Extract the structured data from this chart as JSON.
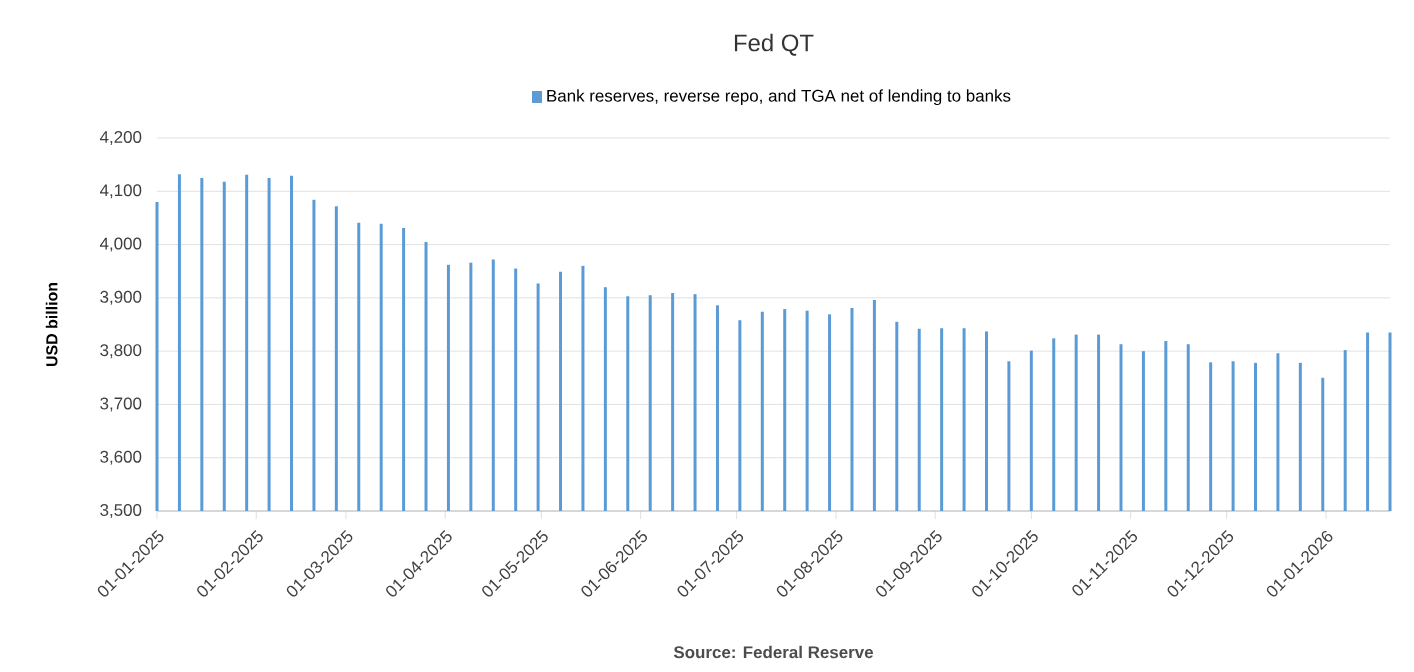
{
  "chart_data": {
    "type": "bar",
    "title": "Fed QT",
    "ylabel": "USD billion",
    "annotations": [
      "Source: Federal Reserve"
    ],
    "x": [
      "2025-01-01",
      "2025-01-08",
      "2025-01-15",
      "2025-01-22",
      "2025-01-29",
      "2025-02-05",
      "2025-02-12",
      "2025-02-19",
      "2025-02-26",
      "2025-03-05",
      "2025-03-12",
      "2025-03-19",
      "2025-03-26",
      "2025-04-02",
      "2025-04-09",
      "2025-04-16",
      "2025-04-23",
      "2025-04-30",
      "2025-05-07",
      "2025-05-14",
      "2025-05-21",
      "2025-05-28",
      "2025-06-04",
      "2025-06-11",
      "2025-06-18",
      "2025-06-25",
      "2025-07-02",
      "2025-07-09",
      "2025-07-16",
      "2025-07-23",
      "2025-07-30",
      "2025-08-06",
      "2025-08-13",
      "2025-08-20",
      "2025-08-27",
      "2025-09-03",
      "2025-09-10",
      "2025-09-17",
      "2025-09-24",
      "2025-10-01",
      "2025-10-08",
      "2025-10-15",
      "2025-10-22",
      "2025-10-29",
      "2025-11-05",
      "2025-11-12",
      "2025-11-19",
      "2025-11-26",
      "2025-12-03",
      "2025-12-10",
      "2025-12-17",
      "2025-12-24",
      "2025-12-31",
      "2026-01-07",
      "2026-01-14",
      "2026-01-21"
    ],
    "series": [
      {
        "name": "Bank reserves, reverse repo, and TGA net of lending to banks",
        "color": "#5b9bd5",
        "values": [
          4080,
          4132,
          4125,
          4118,
          4131,
          4125,
          4129,
          4084,
          4072,
          4041,
          4039,
          4031,
          4005,
          3962,
          3966,
          3972,
          3955,
          3927,
          3949,
          3960,
          3920,
          3903,
          3905,
          3909,
          3907,
          3886,
          3858,
          3874,
          3879,
          3876,
          3869,
          3881,
          3896,
          3855,
          3842,
          3843,
          3843,
          3837,
          3781,
          3801,
          3824,
          3831,
          3831,
          3813,
          3800,
          3819,
          3813,
          3779,
          3781,
          3778,
          3796,
          3778,
          3750,
          3802,
          3835,
          3835
        ]
      }
    ],
    "xlim": [
      "2025-01-01",
      "2026-01-21"
    ],
    "xticks": [
      {
        "value": "2025-01-01",
        "label": "01-01-2025"
      },
      {
        "value": "2025-02-01",
        "label": "01-02-2025"
      },
      {
        "value": "2025-03-01",
        "label": "01-03-2025"
      },
      {
        "value": "2025-04-01",
        "label": "01-04-2025"
      },
      {
        "value": "2025-05-01",
        "label": "01-05-2025"
      },
      {
        "value": "2025-06-01",
        "label": "01-06-2025"
      },
      {
        "value": "2025-07-01",
        "label": "01-07-2025"
      },
      {
        "value": "2025-08-01",
        "label": "01-08-2025"
      },
      {
        "value": "2025-09-01",
        "label": "01-09-2025"
      },
      {
        "value": "2025-10-01",
        "label": "01-10-2025"
      },
      {
        "value": "2025-11-01",
        "label": "01-11-2025"
      },
      {
        "value": "2025-12-01",
        "label": "01-12-2025"
      },
      {
        "value": "2026-01-01",
        "label": "01-01-2026"
      }
    ],
    "ylim": [
      3500,
      4200
    ],
    "yticks": [
      {
        "value": 3500,
        "label": "3,500"
      },
      {
        "value": 3600,
        "label": "3,600"
      },
      {
        "value": 3700,
        "label": "3,700"
      },
      {
        "value": 3800,
        "label": "3,800"
      },
      {
        "value": 3900,
        "label": "3,900"
      },
      {
        "value": 4000,
        "label": "4,000"
      },
      {
        "value": 4100,
        "label": "4,100"
      },
      {
        "value": 4200,
        "label": "4,200"
      }
    ],
    "grid": "y",
    "legend": "top"
  }
}
